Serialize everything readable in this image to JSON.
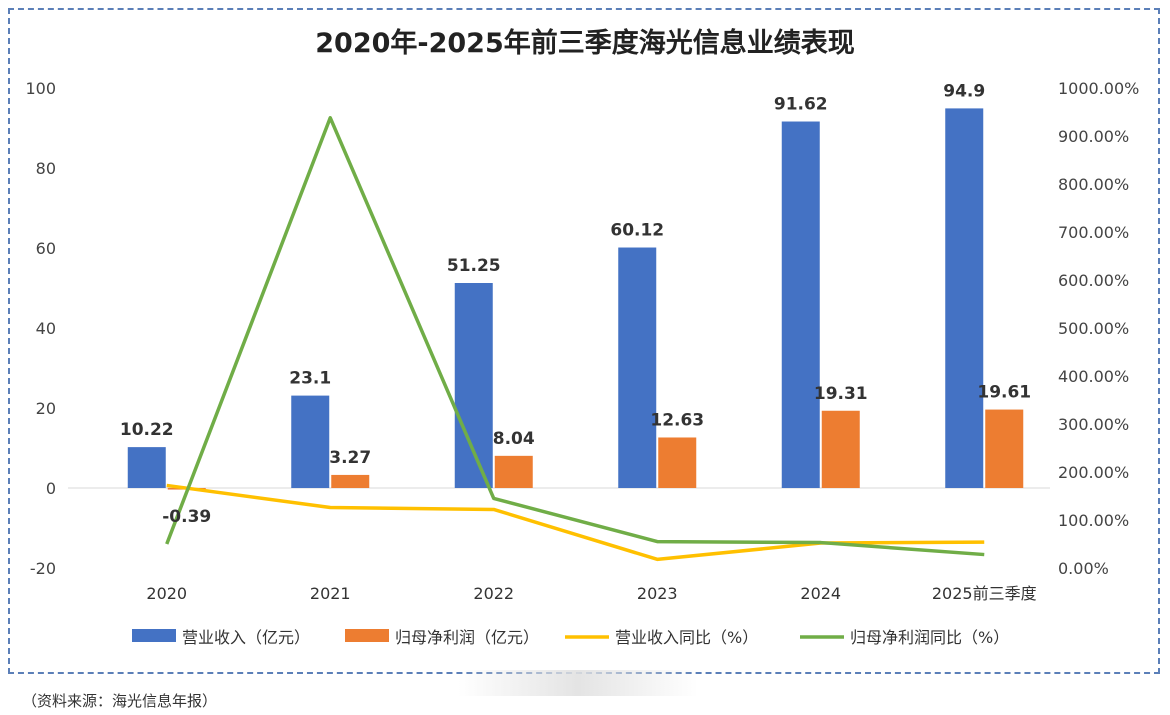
{
  "chart_data": {
    "type": "bar",
    "title": "2020年-2025年前三季度海光信息业绩表现",
    "categories": [
      "2020",
      "2021",
      "2022",
      "2023",
      "2024",
      "2025前三季度"
    ],
    "series": [
      {
        "name": "营业收入（亿元）",
        "kind": "bar",
        "axis": "left",
        "color": "#4472c4",
        "values": [
          10.22,
          23.1,
          51.25,
          60.12,
          91.62,
          94.9
        ],
        "labels": [
          "10.22",
          "23.1",
          "51.25",
          "60.12",
          "91.62",
          "94.9"
        ]
      },
      {
        "name": "归母净利润（亿元）",
        "kind": "bar",
        "axis": "left",
        "color": "#ed7d31",
        "values": [
          -0.39,
          3.27,
          8.04,
          12.63,
          19.31,
          19.61
        ],
        "labels": [
          "-0.39",
          "3.27",
          "8.04",
          "12.63",
          "19.31",
          "19.61"
        ]
      },
      {
        "name": "营业收入同比（%）",
        "kind": "line",
        "axis": "right",
        "color": "#ffc000",
        "values": [
          172,
          126,
          122,
          18,
          52,
          54
        ]
      },
      {
        "name": "归母净利润同比（%）",
        "kind": "line",
        "axis": "right",
        "color": "#70ad47",
        "values": [
          50,
          938,
          145,
          55,
          53,
          28
        ]
      }
    ],
    "left_axis": {
      "min": -20,
      "max": 100,
      "ticks": [
        "100",
        "80",
        "60",
        "40",
        "20",
        "0",
        "-20"
      ],
      "tick_values": [
        100,
        80,
        60,
        40,
        20,
        0,
        -20
      ]
    },
    "right_axis": {
      "min": 0,
      "max": 1000,
      "ticks": [
        "1000.00%",
        "900.00%",
        "800.00%",
        "700.00%",
        "600.00%",
        "500.00%",
        "400.00%",
        "300.00%",
        "200.00%",
        "100.00%",
        "0.00%"
      ],
      "tick_values": [
        1000,
        900,
        800,
        700,
        600,
        500,
        400,
        300,
        200,
        100,
        0
      ]
    },
    "legend_position": "bottom"
  },
  "source_note": "（资料来源：海光信息年报）"
}
